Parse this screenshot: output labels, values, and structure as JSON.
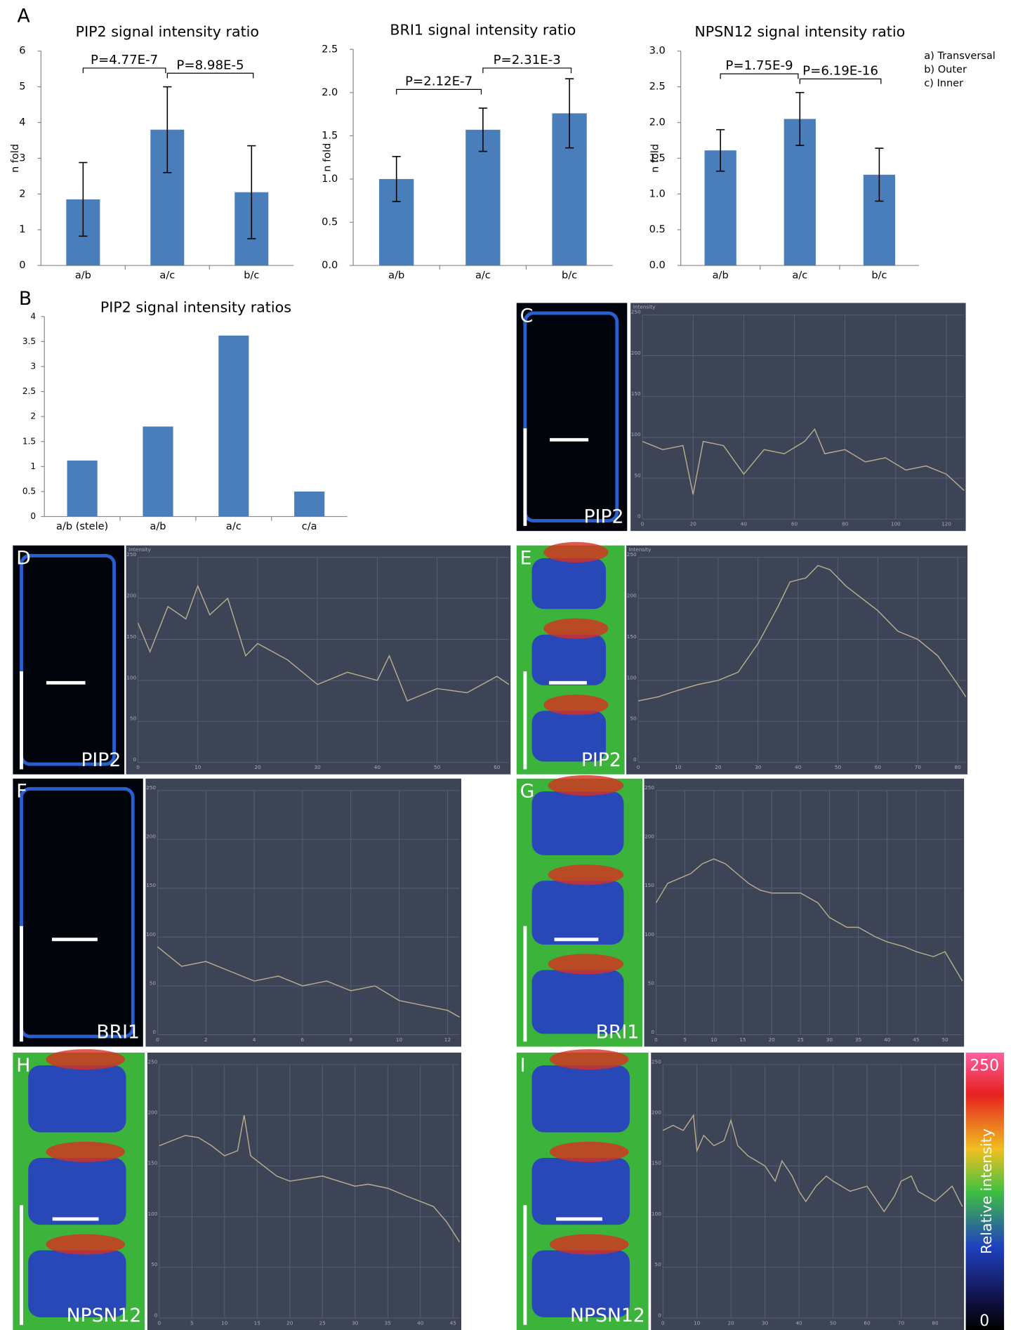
{
  "chart_data": [
    {
      "type": "bar",
      "panel": "A",
      "title": "PIP2 signal intensity ratio",
      "ylabel": "n fold",
      "categories": [
        "a/b",
        "a/c",
        "b/c"
      ],
      "values": [
        1.85,
        3.8,
        2.05
      ],
      "errors": [
        1.03,
        1.2,
        1.3
      ],
      "color": "#4a7ebb",
      "ylim": [
        0,
        6
      ],
      "yticks": [
        0,
        1,
        2,
        3,
        4,
        5,
        6
      ],
      "annotations": [
        {
          "text": "P=4.77E-7",
          "from": 0,
          "to": 1
        },
        {
          "text": "P=8.98E-5",
          "from": 1,
          "to": 2
        }
      ]
    },
    {
      "type": "bar",
      "title": "BRI1 signal intensity ratio",
      "ylabel": "n fold",
      "categories": [
        "a/b",
        "a/c",
        "b/c"
      ],
      "values": [
        1.0,
        1.57,
        1.76
      ],
      "errors": [
        0.26,
        0.25,
        0.4
      ],
      "color": "#4a7ebb",
      "ylim": [
        0,
        2.5
      ],
      "yticks": [
        {
          "value": 0,
          "label": "0.0"
        },
        0.5,
        {
          "value": 1,
          "label": "1.0"
        },
        1.5,
        {
          "value": 2,
          "label": "2.0"
        },
        2.5
      ],
      "annotations": [
        {
          "text": "P=2.12E-7",
          "from": 0,
          "to": 1
        },
        {
          "text": "P=2.31E-3",
          "from": 1,
          "to": 2
        }
      ]
    },
    {
      "type": "bar",
      "title": "NPSN12 signal intensity ratio",
      "ylabel": "n fold",
      "categories": [
        "a/b",
        "a/c",
        "b/c"
      ],
      "values": [
        1.61,
        2.05,
        1.27
      ],
      "errors": [
        0.29,
        0.37,
        0.37
      ],
      "color": "#4a7ebb",
      "ylim": [
        0,
        3
      ],
      "yticks": [
        {
          "value": 0,
          "label": "0.0"
        },
        0.5,
        {
          "value": 1,
          "label": "1.0"
        },
        1.5,
        {
          "value": 2,
          "label": "2.0"
        },
        2.5,
        {
          "value": 3,
          "label": "3.0"
        }
      ],
      "annotations": [
        {
          "text": "P=1.75E-9",
          "from": 0,
          "to": 1
        },
        {
          "text": "P=6.19E-16",
          "from": 1,
          "to": 2
        }
      ],
      "notes": [
        "a) Transversal",
        "b) Outer",
        "c) Inner"
      ]
    },
    {
      "type": "bar",
      "panel": "B",
      "title": "PIP2 signal intensity ratios",
      "categories": [
        "a/b (stele)",
        "a/b",
        "a/c",
        "c/a"
      ],
      "values": [
        1.12,
        1.8,
        3.62,
        0.5
      ],
      "color": "#4a7ebb",
      "ylim": [
        0,
        4
      ],
      "yticks": [
        0,
        0.5,
        1,
        1.5,
        2,
        2.5,
        3,
        3.5,
        4
      ]
    },
    {
      "type": "line",
      "panel": "C",
      "image_label": "PIP2",
      "ylabel": "Intensity",
      "color": "#b8ab8e",
      "x": [
        0,
        8,
        16,
        20,
        24,
        32,
        40,
        48,
        56,
        64,
        68,
        72,
        80,
        88,
        96,
        104,
        112,
        120,
        127
      ],
      "values": [
        95,
        85,
        90,
        30,
        95,
        90,
        55,
        85,
        80,
        95,
        110,
        80,
        85,
        70,
        75,
        60,
        65,
        55,
        35
      ],
      "xlim": [
        0,
        127
      ],
      "xticks": [
        0,
        20,
        40,
        60,
        80,
        100,
        120
      ],
      "ylim": [
        0,
        250
      ],
      "yticks": [
        0,
        50,
        100,
        150,
        200,
        250
      ]
    },
    {
      "type": "line",
      "panel": "D",
      "image_label": "PIP2",
      "ylabel": "Intensity",
      "color": "#b8ab8e",
      "x": [
        0,
        2,
        5,
        8,
        10,
        12,
        15,
        18,
        20,
        25,
        30,
        35,
        40,
        42,
        45,
        50,
        55,
        60,
        62
      ],
      "values": [
        170,
        135,
        190,
        175,
        215,
        180,
        200,
        130,
        145,
        125,
        95,
        110,
        100,
        130,
        75,
        90,
        85,
        105,
        95
      ],
      "xlim": [
        0,
        62
      ],
      "xticks": [
        0,
        10,
        20,
        30,
        40,
        50,
        60
      ],
      "ylim": [
        0,
        250
      ],
      "yticks": [
        0,
        50,
        100,
        150,
        200,
        250
      ]
    },
    {
      "type": "line",
      "panel": "E",
      "image_label": "PIP2",
      "ylabel": "Intensity",
      "color": "#b8ab8e",
      "x": [
        0,
        5,
        10,
        15,
        20,
        25,
        30,
        35,
        38,
        42,
        45,
        48,
        52,
        56,
        60,
        65,
        70,
        75,
        80,
        82
      ],
      "values": [
        75,
        80,
        88,
        95,
        100,
        110,
        145,
        190,
        220,
        225,
        240,
        235,
        215,
        200,
        185,
        160,
        150,
        130,
        95,
        80
      ],
      "xlim": [
        0,
        82
      ],
      "xticks": [
        0,
        10,
        20,
        30,
        40,
        50,
        60,
        70,
        80
      ],
      "ylim": [
        0,
        250
      ],
      "yticks": [
        0,
        50,
        100,
        150,
        200,
        250
      ]
    },
    {
      "type": "line",
      "panel": "F",
      "image_label": "BRI1",
      "color": "#b8ab8e",
      "x": [
        0,
        1,
        2,
        3,
        4,
        5,
        6,
        7,
        8,
        9,
        10,
        11,
        12,
        12.5
      ],
      "values": [
        90,
        70,
        75,
        65,
        55,
        60,
        50,
        55,
        45,
        50,
        35,
        30,
        25,
        18
      ],
      "xlim": [
        0,
        12.5
      ],
      "xticks": [
        0,
        2,
        4,
        6,
        8,
        10,
        12
      ],
      "ylim": [
        0,
        250
      ],
      "yticks": [
        0,
        50,
        100,
        150,
        200,
        250
      ]
    },
    {
      "type": "line",
      "panel": "G",
      "image_label": "BRI1",
      "color": "#b8ab8e",
      "x": [
        0,
        2,
        4,
        6,
        8,
        10,
        12,
        14,
        16,
        18,
        20,
        22,
        25,
        28,
        30,
        33,
        35,
        38,
        40,
        43,
        45,
        48,
        50,
        53
      ],
      "values": [
        135,
        155,
        160,
        165,
        175,
        180,
        175,
        165,
        155,
        148,
        145,
        145,
        145,
        135,
        120,
        110,
        110,
        100,
        95,
        90,
        85,
        80,
        85,
        55
      ],
      "xlim": [
        0,
        53
      ],
      "xticks": [
        0,
        5,
        10,
        15,
        20,
        25,
        30,
        35,
        40,
        45,
        50
      ],
      "ylim": [
        0,
        250
      ],
      "yticks": [
        0,
        50,
        100,
        150,
        200,
        250
      ]
    },
    {
      "type": "line",
      "panel": "H",
      "image_label": "NPSN12",
      "color": "#b8ab8e",
      "x": [
        0,
        2,
        4,
        6,
        8,
        10,
        12,
        13,
        14,
        16,
        18,
        20,
        25,
        30,
        32,
        35,
        38,
        40,
        42,
        44,
        46
      ],
      "values": [
        170,
        175,
        180,
        178,
        170,
        160,
        165,
        200,
        160,
        150,
        140,
        135,
        140,
        130,
        132,
        128,
        120,
        115,
        110,
        95,
        75
      ],
      "xlim": [
        0,
        46
      ],
      "xticks": [
        0,
        5,
        10,
        15,
        20,
        25,
        30,
        35,
        40,
        45
      ],
      "ylim": [
        0,
        250
      ],
      "yticks": [
        0,
        50,
        100,
        150,
        200,
        250
      ]
    },
    {
      "type": "line",
      "panel": "I",
      "image_label": "NPSN12",
      "color": "#b8ab8e",
      "x": [
        0,
        3,
        6,
        9,
        10,
        12,
        15,
        18,
        20,
        22,
        25,
        30,
        33,
        35,
        38,
        40,
        42,
        45,
        48,
        50,
        55,
        60,
        63,
        65,
        68,
        70,
        73,
        75,
        80,
        85,
        88
      ],
      "values": [
        185,
        190,
        185,
        200,
        165,
        180,
        170,
        175,
        195,
        170,
        160,
        150,
        135,
        155,
        140,
        125,
        115,
        130,
        140,
        135,
        125,
        130,
        115,
        105,
        120,
        135,
        140,
        125,
        115,
        130,
        110
      ],
      "xlim": [
        0,
        88
      ],
      "xticks": [
        0,
        10,
        20,
        30,
        40,
        50,
        60,
        70,
        80
      ],
      "ylim": [
        0,
        250
      ],
      "yticks": [
        0,
        50,
        100,
        150,
        200,
        250
      ],
      "colorbar": {
        "max": 250,
        "min": 0,
        "label": "Relative intensity"
      }
    }
  ]
}
